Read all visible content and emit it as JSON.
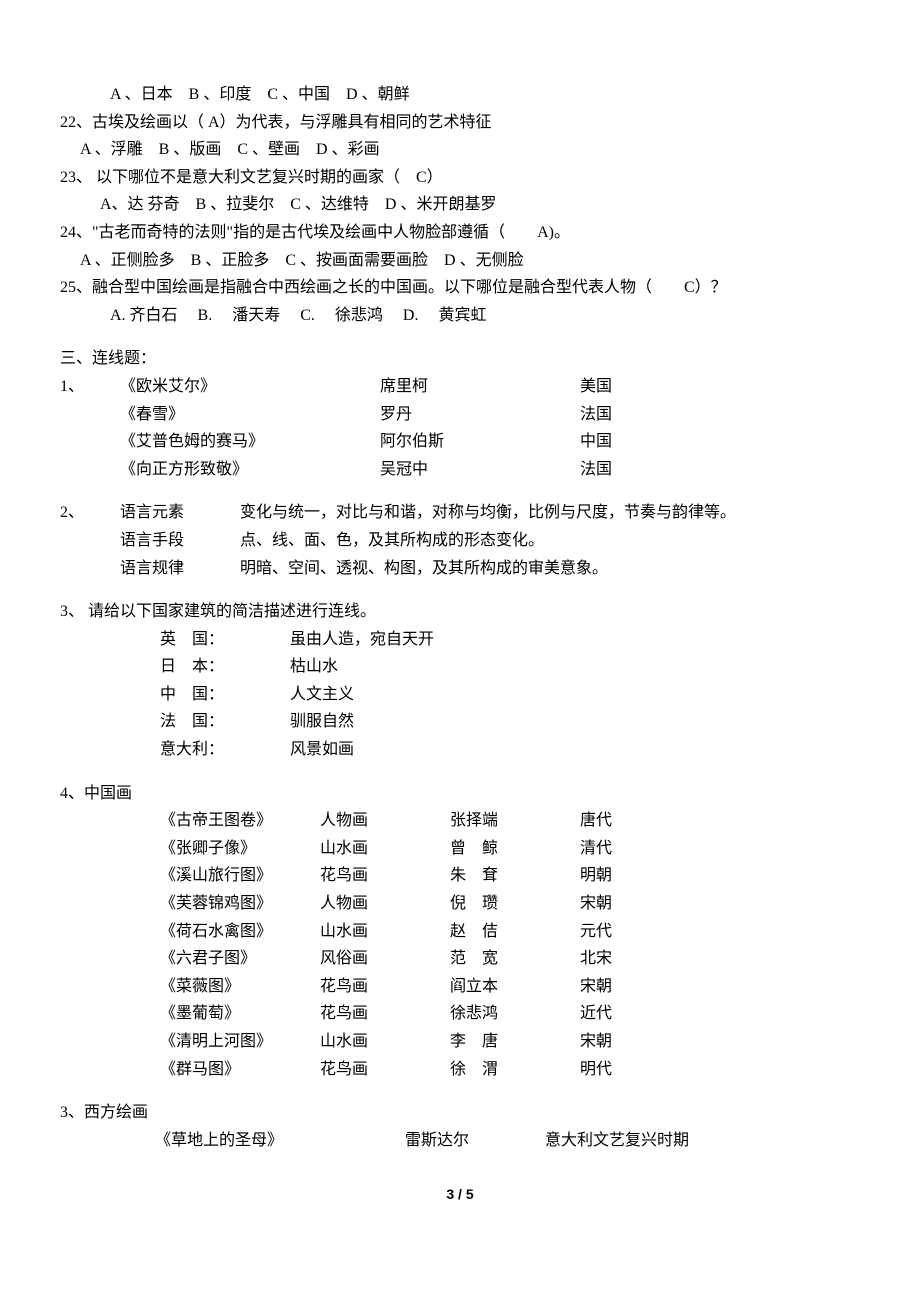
{
  "q21_opts": "A 、日本　B 、印度　C 、中国　D 、朝鲜",
  "q22": "22、古埃及绘画以（ A）为代表，与浮雕具有相同的艺术特征",
  "q22_opts": "A 、浮雕　B 、版画　C 、壁画　D 、彩画",
  "q23": "23、 以下哪位不是意大利文艺复兴时期的画家（　C）",
  "q23_opts": "A、达 芬奇　B 、拉斐尔　C 、达维特　D 、米开朗基罗",
  "q24": "24、\"古老而奇特的法则\"指的是古代埃及绘画中人物脸部遵循（　　A)。",
  "q24_opts": "A 、正侧脸多　B 、正脸多　C 、按画面需要画脸　D 、无侧脸",
  "q25": "25、融合型中国绘画是指融合中西绘画之长的中国画。以下哪位是融合型代表人物（　　C）？",
  "q25_opts": "A. 齐白石　 B.　 潘天寿　 C.　 徐悲鸿　 D.　 黄宾虹",
  "sec3": "三、连线题：",
  "m1_num": "1、",
  "m1": [
    [
      "《欧米艾尔》",
      "席里柯",
      "美国"
    ],
    [
      "《春雪》",
      "罗丹",
      "法国"
    ],
    [
      "《艾普色姆的赛马》",
      "阿尔伯斯",
      "中国"
    ],
    [
      "《向正方形致敬》",
      "吴冠中",
      "法国"
    ]
  ],
  "m2_num": "2、",
  "m2": [
    [
      "语言元素",
      "变化与统一，对比与和谐，对称与均衡，比例与尺度，节奏与韵律等。"
    ],
    [
      "语言手段",
      "点、线、面、色，及其所构成的形态变化。"
    ],
    [
      "语言规律",
      "明暗、空间、透视、构图，及其所构成的审美意象。"
    ]
  ],
  "m3_head": "3、 请给以下国家建筑的简洁描述进行连线。",
  "m3": [
    [
      "英　国：",
      "虽由人造，宛自天开"
    ],
    [
      "日　本：",
      "枯山水"
    ],
    [
      "中　国：",
      "人文主义"
    ],
    [
      "法　国：",
      "驯服自然"
    ],
    [
      "意大利：",
      "风景如画"
    ]
  ],
  "m4_head": "4、中国画",
  "m4": [
    [
      "《古帝王图卷》",
      "人物画",
      "张择端",
      "唐代"
    ],
    [
      "《张卿子像》",
      "山水画",
      "曾　鲸",
      "清代"
    ],
    [
      "《溪山旅行图》",
      "花鸟画",
      "朱　耷",
      "明朝"
    ],
    [
      "《芙蓉锦鸡图》",
      "人物画",
      "倪　瓒",
      "宋朝"
    ],
    [
      "《荷石水禽图》",
      "山水画",
      "赵　佶",
      "元代"
    ],
    [
      "《六君子图》",
      "风俗画",
      "范　宽",
      "北宋"
    ],
    [
      "《菜薇图》",
      "花鸟画",
      "阎立本",
      "宋朝"
    ],
    [
      "《墨葡萄》",
      "花鸟画",
      "徐悲鸿",
      "近代"
    ],
    [
      "《清明上河图》",
      "山水画",
      "李　唐",
      "宋朝"
    ],
    [
      "《群马图》",
      "花鸟画",
      "徐　渭",
      "明代"
    ]
  ],
  "m5_head": "3、西方绘画",
  "m5": [
    [
      "《草地上的圣母》",
      "雷斯达尔",
      "意大利文艺复兴时期"
    ]
  ],
  "page": "3 / 5"
}
